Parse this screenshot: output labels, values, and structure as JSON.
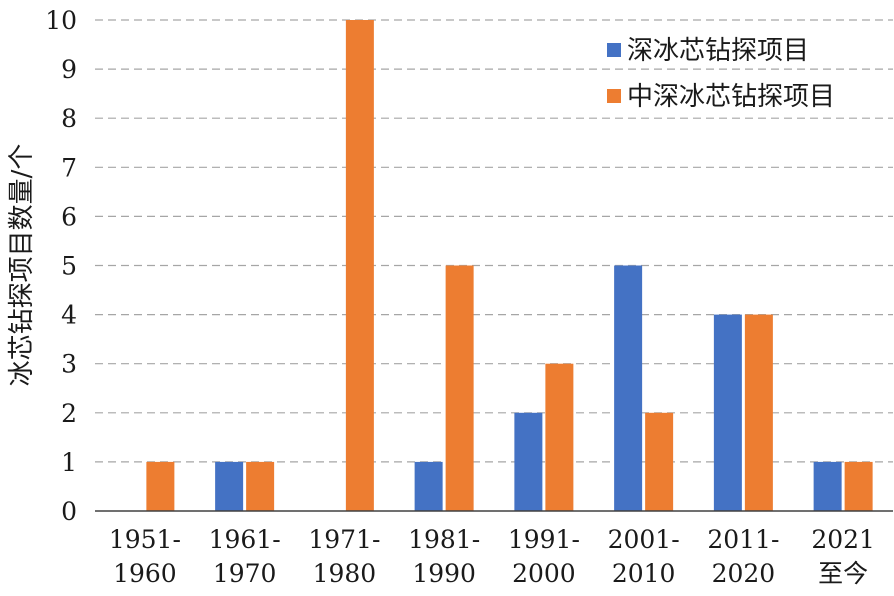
{
  "chart_data": {
    "type": "bar",
    "categories": [
      [
        "1951-",
        "1960"
      ],
      [
        "1961-",
        "1970"
      ],
      [
        "1971-",
        "1980"
      ],
      [
        "1981-",
        "1990"
      ],
      [
        "1991-",
        "2000"
      ],
      [
        "2001-",
        "2010"
      ],
      [
        "2011-",
        "2020"
      ],
      [
        "2021",
        "至今"
      ]
    ],
    "series": [
      {
        "name": "深冰芯钻探项目",
        "color": "#4472C4",
        "values": [
          0,
          1,
          0,
          1,
          2,
          5,
          4,
          1
        ]
      },
      {
        "name": "中深冰芯钻探项目",
        "color": "#ED7D31",
        "values": [
          1,
          1,
          10,
          5,
          3,
          2,
          4,
          1
        ]
      }
    ],
    "ylabel": "冰芯钻探项目数量/个",
    "ylim": [
      0,
      10
    ],
    "yticks": [
      0,
      1,
      2,
      3,
      4,
      5,
      6,
      7,
      8,
      9,
      10
    ],
    "grid": true,
    "legend_position": "top-right"
  }
}
